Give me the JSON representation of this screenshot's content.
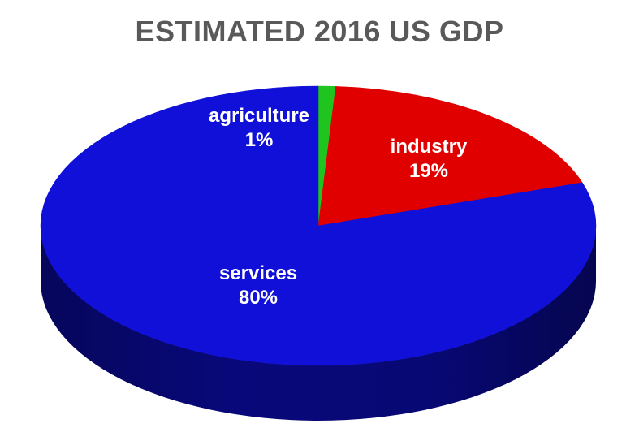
{
  "chart_data": {
    "type": "pie",
    "title": "ESTIMATED 2016 US GDP",
    "categories": [
      "agriculture",
      "industry",
      "services"
    ],
    "values": [
      1,
      19,
      80
    ],
    "value_labels": [
      "1%",
      "19%",
      "80%"
    ],
    "colors": [
      "#1fc41f",
      "#e00000",
      "#1010d8"
    ],
    "side_colors": [
      "#0e7a0e",
      "#8a0000",
      "#08087a"
    ],
    "legend": "none",
    "style": "3d"
  }
}
